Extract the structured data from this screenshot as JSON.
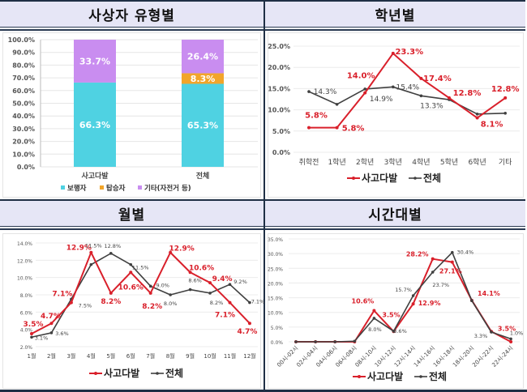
{
  "panels": {
    "type": {
      "title": "사상자 유형별"
    },
    "grade": {
      "title": "학년별"
    },
    "month": {
      "title": "월별"
    },
    "time": {
      "title": "시간대별"
    }
  },
  "colors": {
    "pedestrian": "#4fd2e2",
    "passenger": "#f2a52a",
    "other": "#c98df0",
    "hotspot": "#d9202b",
    "total": "#404040"
  },
  "chart_data": [
    {
      "id": "type",
      "type": "bar",
      "stacked": true,
      "title": "사상자 유형별",
      "categories": [
        "사고다발",
        "전체"
      ],
      "series": [
        {
          "name": "보행자",
          "values": [
            66.3,
            65.3
          ],
          "labels": [
            "66.3%",
            "65.3%"
          ]
        },
        {
          "name": "탑승자",
          "values": [
            0,
            8.3
          ],
          "labels": [
            "",
            "8.3%"
          ]
        },
        {
          "name": "기타(자전거 등)",
          "values": [
            33.7,
            26.4
          ],
          "labels": [
            "33.7%",
            "26.4%"
          ]
        }
      ],
      "yticks": [
        "0.0%",
        "10.0%",
        "20.0%",
        "30.0%",
        "40.0%",
        "50.0%",
        "60.0%",
        "70.0%",
        "80.0%",
        "90.0%",
        "100.0%"
      ],
      "ylim": [
        0,
        100
      ],
      "legend": "bottom",
      "grid": true
    },
    {
      "id": "grade",
      "type": "line",
      "title": "학년별",
      "categories": [
        "취학전",
        "1학년",
        "2학년",
        "3학년",
        "4학년",
        "5학년",
        "6학년",
        "기타"
      ],
      "series": [
        {
          "name": "사고다발",
          "values": [
            5.8,
            5.8,
            14.0,
            23.3,
            17.4,
            12.8,
            8.1,
            12.8
          ],
          "labels": [
            "5.8%",
            "5.8%",
            "14.0%",
            "23.3%",
            "17.4%",
            "12.8%",
            "8.1%",
            "12.8%"
          ]
        },
        {
          "name": "전체",
          "values": [
            14.3,
            11.3,
            14.9,
            15.4,
            13.3,
            12.4,
            9.0,
            9.2
          ],
          "labels": [
            "14.3%",
            "",
            "14.9%",
            "15.4%",
            "13.3%",
            "",
            "",
            ""
          ]
        }
      ],
      "yticks": [
        "0.0%",
        "5.0%",
        "10.0%",
        "15.0%",
        "20.0%",
        "25.0%"
      ],
      "ylim": [
        0,
        25
      ],
      "legend": "bottom",
      "grid": true
    },
    {
      "id": "month",
      "type": "line",
      "title": "월별",
      "categories": [
        "1월",
        "2월",
        "3월",
        "4월",
        "5월",
        "6월",
        "7월",
        "8월",
        "9월",
        "10월",
        "11월",
        "12월"
      ],
      "series": [
        {
          "name": "사고다발",
          "values": [
            3.5,
            4.7,
            7.1,
            12.9,
            8.2,
            10.6,
            8.2,
            12.9,
            10.6,
            9.4,
            7.1,
            4.7
          ],
          "labels": [
            "3.5%",
            "4.7%",
            "7.1%",
            "12.9%",
            "8.2%",
            "10.6%",
            "8.2%",
            "12.9%",
            "10.6%",
            "9.4%",
            "7.1%",
            "4.7%"
          ]
        },
        {
          "name": "전체",
          "values": [
            3.1,
            3.6,
            7.5,
            11.5,
            12.8,
            11.5,
            9.0,
            8.0,
            8.6,
            8.2,
            9.2,
            7.1
          ],
          "labels": [
            "3.1%",
            "3.6%",
            "7.5%",
            "11.5%",
            "12.8%",
            "11.5%",
            "9.0%",
            "8.0%",
            "8.6%",
            "8.2%",
            "9.2%",
            "7.1%"
          ]
        }
      ],
      "yticks": [
        "2.0%",
        "4.0%",
        "6.0%",
        "8.0%",
        "10.0%",
        "12.0%",
        "14.0%"
      ],
      "ylim": [
        2,
        14
      ],
      "legend": "bottom",
      "grid": true
    },
    {
      "id": "time",
      "type": "line",
      "title": "시간대별",
      "categories": [
        "00시-02시",
        "02시-04시",
        "04시-06시",
        "06시-08시",
        "08시-10시",
        "10시-12시",
        "12시-14시",
        "14시-16시",
        "16시-18시",
        "18시-20시",
        "20시-22시",
        "22시-24시"
      ],
      "series": [
        {
          "name": "사고다발",
          "values": [
            0,
            0,
            0,
            0,
            10.6,
            3.5,
            12.9,
            28.2,
            27.1,
            14.1,
            3.5,
            0
          ],
          "labels": [
            "",
            "",
            "",
            "",
            "10.6%",
            "3.5%",
            "12.9%",
            "28.2%",
            "27.1%",
            "14.1%",
            "3.5%",
            ""
          ]
        },
        {
          "name": "전체",
          "values": [
            0,
            0,
            0,
            0.2,
            8.0,
            3.6,
            15.7,
            23.7,
            30.4,
            14.0,
            3.3,
            1.0
          ],
          "labels": [
            "",
            "",
            "",
            "",
            "8.0%",
            "3.6%",
            "15.7%",
            "23.7%",
            "30.4%",
            "",
            "3.3%",
            "1.0%"
          ]
        }
      ],
      "yticks": [
        "0.0%",
        "5.0%",
        "10.0%",
        "15.0%",
        "20.0%",
        "25.0%",
        "30.0%",
        "35.0%"
      ],
      "ylim": [
        0,
        35
      ],
      "legend": "bottom",
      "grid": true
    }
  ]
}
